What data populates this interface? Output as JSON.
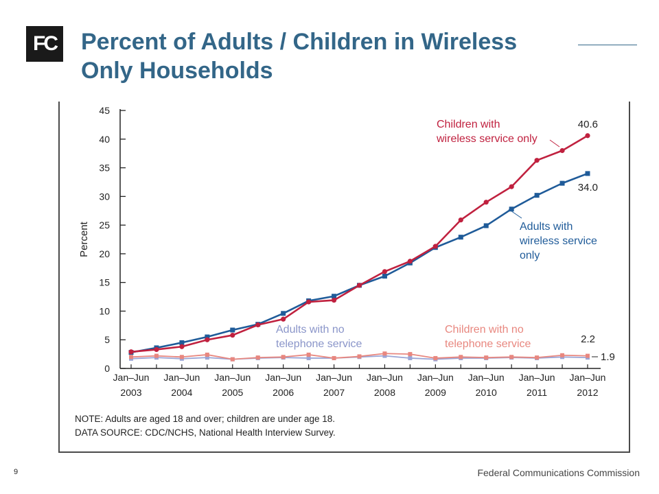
{
  "logo": {
    "text": "FC",
    "icon": "fcc-logo-icon"
  },
  "slide": {
    "title": "Percent of Adults / Children in Wireless Only Households",
    "page_number": "9",
    "organization": "Federal Communications Commission"
  },
  "chart_data": {
    "type": "line",
    "ylabel": "Percent",
    "xlabel": "",
    "ylim": [
      0,
      45
    ],
    "yticks": [
      0,
      5,
      10,
      15,
      20,
      25,
      30,
      35,
      40,
      45
    ],
    "x_labels": [
      {
        "period": "Jan–Jun",
        "year": "2003"
      },
      {
        "period": "Jan–Jun",
        "year": "2004"
      },
      {
        "period": "Jan–Jun",
        "year": "2005"
      },
      {
        "period": "Jan–Jun",
        "year": "2006"
      },
      {
        "period": "Jan–Jun",
        "year": "2007"
      },
      {
        "period": "Jan–Jun",
        "year": "2008"
      },
      {
        "period": "Jan–Jun",
        "year": "2009"
      },
      {
        "period": "Jan–Jun",
        "year": "2010"
      },
      {
        "period": "Jan–Jun",
        "year": "2011"
      },
      {
        "period": "Jan–Jun",
        "year": "2012"
      }
    ],
    "x": [
      "Jan–Jun 2003",
      "Jul–Dec 2003",
      "Jan–Jun 2004",
      "Jul–Dec 2004",
      "Jan–Jun 2005",
      "Jul–Dec 2005",
      "Jan–Jun 2006",
      "Jul–Dec 2006",
      "Jan–Jun 2007",
      "Jul–Dec 2007",
      "Jan–Jun 2008",
      "Jul–Dec 2008",
      "Jan–Jun 2009",
      "Jul–Dec 2009",
      "Jan–Jun 2010",
      "Jul–Dec 2010",
      "Jan–Jun 2011",
      "Jul–Dec 2011",
      "Jan–Jun 2012"
    ],
    "series": [
      {
        "name": "Children with wireless service only",
        "label_lines": [
          "Children with",
          "wireless service only"
        ],
        "color": "#c0213f",
        "marker": "circle",
        "values": [
          2.9,
          3.3,
          3.8,
          5.0,
          5.8,
          7.6,
          8.6,
          11.6,
          11.9,
          14.5,
          16.9,
          18.7,
          21.3,
          25.9,
          29.0,
          31.7,
          36.3,
          38.0,
          40.6
        ],
        "end_label": "40.6"
      },
      {
        "name": "Adults with wireless service only",
        "label_lines": [
          "Adults with",
          "wireless service",
          "only"
        ],
        "color": "#1f5b99",
        "marker": "square",
        "values": [
          2.8,
          3.6,
          4.5,
          5.5,
          6.7,
          7.7,
          9.6,
          11.8,
          12.6,
          14.5,
          16.1,
          18.4,
          21.1,
          22.9,
          24.9,
          27.8,
          30.2,
          32.3,
          34.0
        ],
        "end_label": "34.0"
      },
      {
        "name": "Children with no telephone service",
        "label_lines": [
          "Children with no",
          "telephone service"
        ],
        "color": "#e8877f",
        "marker": "square",
        "values": [
          2.0,
          2.2,
          2.0,
          2.4,
          1.6,
          1.9,
          2.0,
          2.4,
          1.8,
          2.1,
          2.6,
          2.5,
          1.8,
          2.0,
          1.9,
          2.0,
          1.9,
          2.3,
          2.2
        ],
        "end_label": "2.2"
      },
      {
        "name": "Adults with no telephone service",
        "label_lines": [
          "Adults with no",
          "telephone service"
        ],
        "color": "#9aa5d6",
        "marker": "square",
        "values": [
          1.7,
          1.9,
          1.7,
          1.9,
          1.6,
          1.8,
          1.9,
          1.8,
          1.8,
          2.0,
          2.2,
          1.8,
          1.6,
          1.8,
          1.8,
          1.9,
          1.8,
          2.0,
          1.9
        ],
        "end_label": "1.9"
      }
    ],
    "notes": [
      "NOTE: Adults are aged 18 and over; children are under age 18.",
      "DATA SOURCE: CDC/NCHS, National Health Interview Survey."
    ]
  }
}
